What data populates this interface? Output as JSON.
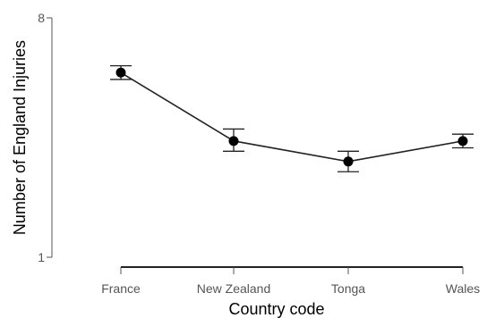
{
  "chart_data": {
    "type": "line",
    "categories": [
      "France",
      "New Zealand",
      "Tonga",
      "Wales"
    ],
    "series": [
      {
        "values": [
          6.4,
          4.4,
          3.8,
          4.4
        ],
        "error_low": [
          6.2,
          4.1,
          3.5,
          4.2
        ],
        "error_high": [
          6.6,
          4.75,
          4.1,
          4.6
        ]
      }
    ],
    "y_tick_labels": [
      "1",
      "8"
    ],
    "ylim": [
      1,
      8
    ],
    "xlabel": "Country code",
    "ylabel": "Number of England Injuries",
    "grid": false,
    "line_color": "#222222",
    "point_color": "#000000"
  }
}
